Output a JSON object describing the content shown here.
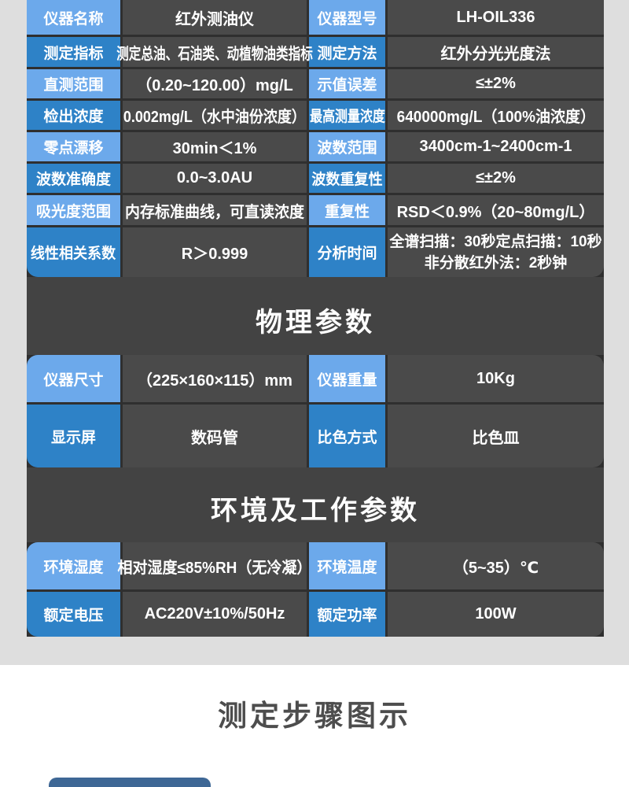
{
  "colors": {
    "label_light_blue": "#6ca9eb",
    "label_dark_blue": "#2e82c7",
    "panel_background": "#434343",
    "cell_background": "#4a4a4a",
    "page_background": "#dedede",
    "step_button_blue": "#3e6795",
    "steps_title_gray": "#4d4d4d"
  },
  "spec_table": {
    "rows": [
      {
        "label1": "仪器名称",
        "value1": "红外测油仪",
        "label2": "仪器型号",
        "value2": "LH-OIL336"
      },
      {
        "label1": "测定指标",
        "value1": "测定总油、石油类、动植物油类指标",
        "label2": "测定方法",
        "value2": "红外分光光度法"
      },
      {
        "label1": "直测范围",
        "value1": "（0.20~120.00）mg/L",
        "label2": "示值误差",
        "value2": "≤±2%"
      },
      {
        "label1": "检出浓度",
        "value1": "0.002mg/L（水中油份浓度）",
        "label2": "最高测量浓度",
        "value2": "640000mg/L（100%油浓度）"
      },
      {
        "label1": "零点漂移",
        "value1": "30min＜1%",
        "label2": "波数范围",
        "value2": "3400cm-1~2400cm-1"
      },
      {
        "label1": "波数准确度",
        "value1": "0.0~3.0AU",
        "label2": "波数重复性",
        "value2": "≤±2%"
      },
      {
        "label1": "吸光度范围",
        "value1": "内存标准曲线，可直读浓度",
        "label2": "重复性",
        "value2": "RSD＜0.9%（20~80mg/L）"
      },
      {
        "label1": "线性相关系数",
        "value1": "R＞0.999",
        "label2": "分析时间",
        "value2_line1": "全谱扫描：30秒定点扫描：10秒",
        "value2_line2": "非分散红外法：2秒钟"
      }
    ]
  },
  "physical": {
    "title": "物理参数",
    "rows": [
      {
        "label1": "仪器尺寸",
        "value1": "（225×160×115）mm",
        "label2": "仪器重量",
        "value2": "10Kg"
      },
      {
        "label1": "显示屏",
        "value1": "数码管",
        "label2": "比色方式",
        "value2": "比色皿"
      }
    ]
  },
  "environment": {
    "title": "环境及工作参数",
    "rows": [
      {
        "label1": "环境湿度",
        "value1": "相对湿度≤85%RH（无冷凝）",
        "label2": "环境温度",
        "value2": "（5~35）℃"
      },
      {
        "label1": "额定电压",
        "value1": "AC220V±10%/50Hz",
        "label2": "额定功率",
        "value2": "100W"
      }
    ]
  },
  "steps": {
    "title": "测定步骤图示"
  }
}
